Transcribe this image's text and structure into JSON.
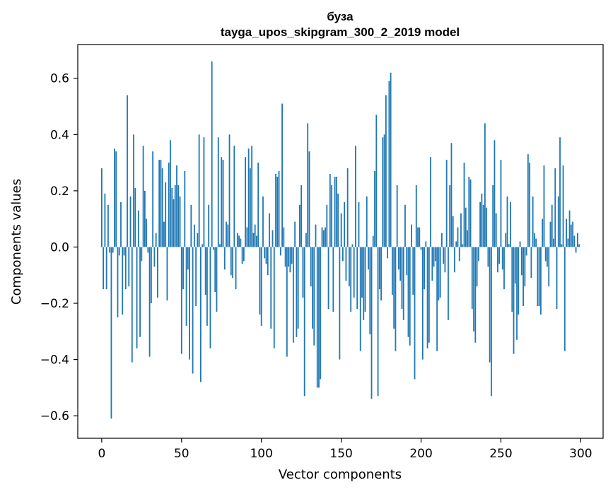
{
  "chart_data": {
    "type": "bar",
    "title_line1": "буза",
    "title_line2": "tayga_upos_skipgram_300_2_2019 model",
    "xlabel": "Vector components",
    "ylabel": "Components values",
    "xlim": [
      -15,
      314
    ],
    "ylim": [
      -0.68,
      0.72
    ],
    "xticks": [
      0,
      50,
      100,
      150,
      200,
      250,
      300
    ],
    "yticks": [
      -0.6,
      -0.4,
      -0.2,
      0.0,
      0.2,
      0.4,
      0.6
    ],
    "ytick_labels": [
      "−0.6",
      "−0.4",
      "−0.2",
      "0.0",
      "0.2",
      "0.4",
      "0.6"
    ],
    "bar_color": "#1f77b4",
    "x": "0..299",
    "values": [
      0.28,
      -0.15,
      0.19,
      -0.15,
      0.15,
      -0.02,
      -0.61,
      -0.02,
      0.35,
      0.34,
      -0.25,
      -0.03,
      0.16,
      -0.24,
      -0.03,
      -0.15,
      0.54,
      -0.14,
      0.18,
      -0.41,
      0.4,
      0.21,
      -0.36,
      0.13,
      -0.32,
      -0.05,
      0.36,
      0.2,
      0.1,
      -0.02,
      -0.39,
      -0.2,
      0.34,
      -0.07,
      0.05,
      -0.18,
      0.31,
      0.31,
      0.28,
      0.09,
      0.23,
      -0.19,
      0.3,
      0.38,
      0.21,
      0.17,
      0.22,
      0.29,
      0.22,
      0.18,
      -0.38,
      -0.15,
      0.27,
      -0.28,
      -0.08,
      -0.4,
      0.15,
      -0.45,
      0.08,
      -0.21,
      0.05,
      0.4,
      -0.48,
      0.01,
      0.39,
      -0.17,
      -0.28,
      0.15,
      -0.36,
      0.66,
      -0.01,
      -0.16,
      -0.23,
      0.39,
      0.01,
      0.32,
      0.31,
      -0.08,
      0.09,
      0.08,
      0.4,
      -0.1,
      -0.11,
      0.36,
      -0.15,
      0.05,
      0.04,
      0.03,
      -0.06,
      -0.05,
      0.32,
      0.07,
      0.35,
      0.28,
      0.36,
      0.05,
      0.08,
      0.04,
      0.3,
      -0.24,
      -0.28,
      0.18,
      -0.04,
      -0.06,
      -0.1,
      0.12,
      -0.29,
      0.06,
      -0.36,
      0.26,
      0.25,
      0.27,
      -0.03,
      0.51,
      0.07,
      -0.07,
      -0.39,
      -0.07,
      -0.09,
      -0.06,
      -0.34,
      0.09,
      -0.32,
      -0.29,
      0.15,
      0.22,
      -0.18,
      -0.53,
      0.05,
      0.44,
      0.34,
      -0.14,
      -0.29,
      -0.35,
      0.08,
      -0.5,
      -0.5,
      -0.47,
      0.07,
      0.06,
      0.07,
      0.15,
      -0.22,
      0.26,
      0.22,
      -0.23,
      0.25,
      0.25,
      0.19,
      -0.4,
      0.12,
      -0.05,
      0.16,
      -0.12,
      0.28,
      -0.14,
      -0.23,
      0.01,
      -0.18,
      0.36,
      -0.22,
      0.16,
      -0.37,
      -0.18,
      -0.26,
      -0.23,
      0.18,
      -0.08,
      -0.31,
      -0.54,
      0.04,
      0.27,
      0.47,
      -0.53,
      -0.15,
      -0.19,
      0.39,
      0.4,
      0.54,
      -0.04,
      0.59,
      0.62,
      -0.17,
      -0.29,
      -0.37,
      0.22,
      -0.08,
      -0.12,
      -0.22,
      -0.26,
      0.15,
      -0.1,
      -0.32,
      -0.35,
      0.08,
      -0.17,
      -0.47,
      0.22,
      0.07,
      0.07,
      -0.01,
      -0.4,
      -0.15,
      0.02,
      -0.36,
      -0.34,
      0.32,
      -0.12,
      -0.07,
      -0.05,
      -0.37,
      -0.19,
      -0.18,
      0.05,
      -0.06,
      -0.09,
      0.31,
      -0.26,
      0.22,
      0.37,
      0.11,
      -0.09,
      0.02,
      0.07,
      -0.05,
      0.12,
      0.01,
      0.3,
      0.14,
      0.06,
      0.25,
      0.24,
      -0.22,
      -0.3,
      -0.34,
      -0.14,
      -0.05,
      0.16,
      0.19,
      0.15,
      0.44,
      0.14,
      -0.07,
      -0.41,
      -0.53,
      0.22,
      0.38,
      0.12,
      -0.09,
      -0.06,
      0.31,
      -0.08,
      -0.15,
      0.05,
      0.18,
      0.01,
      0.16,
      -0.23,
      -0.38,
      -0.13,
      -0.33,
      -0.24,
      0.02,
      -0.1,
      -0.21,
      -0.14,
      -0.03,
      0.33,
      0.3,
      -0.11,
      0.18,
      0.05,
      0.03,
      -0.21,
      -0.21,
      -0.24,
      0.1,
      0.29,
      -0.05,
      -0.07,
      -0.14,
      0.09,
      0.15,
      0.03,
      0.28,
      -0.22,
      0.18,
      0.39,
      0.01,
      0.29,
      -0.37,
      0.1,
      0.03,
      0.13,
      0.08,
      0.09,
      0.04,
      -0.02,
      0.05,
      0.01
    ]
  }
}
